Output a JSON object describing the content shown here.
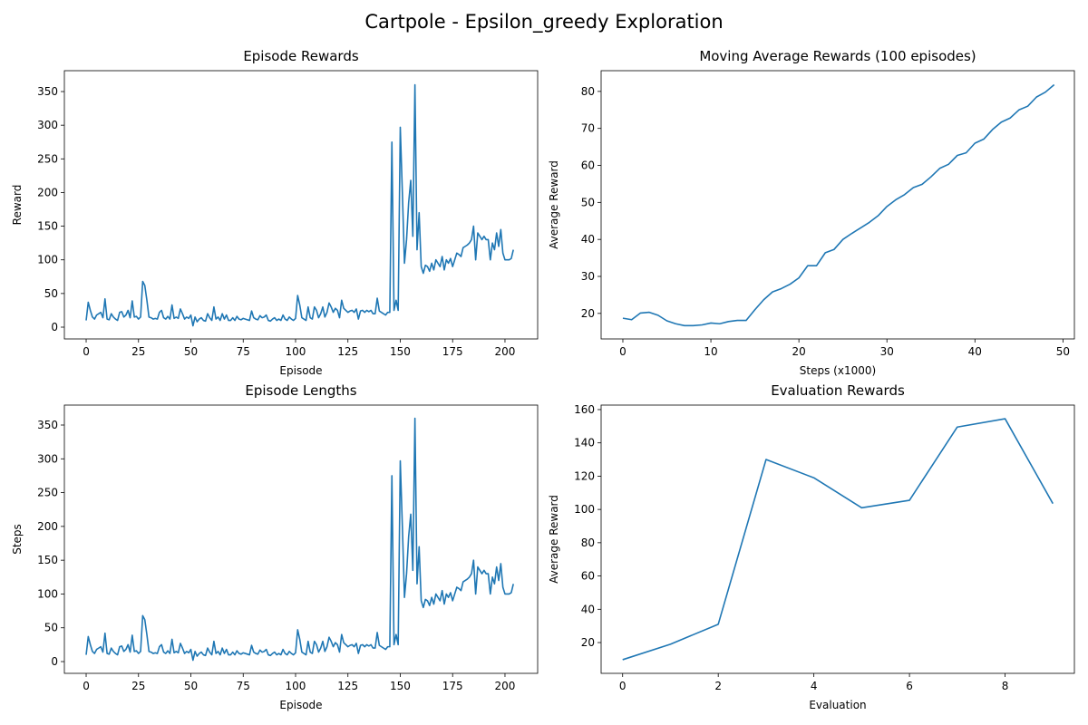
{
  "title": "Cartpole - Epsilon_greedy Exploration",
  "chart_data": [
    {
      "type": "line",
      "title": "Episode Rewards",
      "xlabel": "Episode",
      "ylabel": "Reward",
      "color": "#1f77b4",
      "values": [
        10,
        37,
        25,
        15,
        12,
        18,
        20,
        22,
        14,
        42,
        12,
        11,
        20,
        15,
        12,
        10,
        22,
        23,
        15,
        18,
        25,
        14,
        39,
        15,
        16,
        12,
        15,
        68,
        62,
        40,
        15,
        14,
        12,
        13,
        12,
        22,
        25,
        14,
        12,
        16,
        12,
        33,
        13,
        15,
        13,
        27,
        20,
        12,
        15,
        13,
        18,
        2,
        15,
        8,
        12,
        14,
        10,
        9,
        20,
        14,
        10,
        30,
        12,
        15,
        10,
        20,
        12,
        18,
        10,
        10,
        14,
        10,
        16,
        12,
        11,
        13,
        12,
        11,
        10,
        24,
        14,
        12,
        11,
        17,
        14,
        15,
        18,
        10,
        9,
        12,
        14,
        10,
        12,
        10,
        18,
        12,
        10,
        15,
        12,
        10,
        13,
        47,
        33,
        14,
        12,
        10,
        30,
        14,
        12,
        30,
        25,
        14,
        20,
        30,
        15,
        22,
        36,
        30,
        22,
        28,
        25,
        14,
        40,
        28,
        25,
        22,
        24,
        25,
        22,
        27,
        12,
        24,
        25,
        22,
        25,
        23,
        25,
        20,
        20,
        43,
        24,
        22,
        20,
        18,
        22,
        22,
        275,
        25,
        40,
        25,
        297,
        200,
        95,
        130,
        185,
        218,
        135,
        360,
        115,
        170,
        90,
        80,
        92,
        90,
        83,
        95,
        85,
        100,
        95,
        90,
        105,
        85,
        100,
        95,
        102,
        90,
        100,
        110,
        108,
        105,
        118,
        120,
        122,
        125,
        130,
        150,
        100,
        140,
        135,
        130,
        135,
        130,
        130,
        100,
        125,
        115,
        140,
        120,
        145,
        110,
        100,
        100,
        100,
        102,
        115
      ],
      "xlim": [
        -10.4,
        215.6
      ],
      "ylim": [
        -17.5,
        381
      ],
      "xticks": [
        0,
        25,
        50,
        75,
        100,
        125,
        150,
        175,
        200
      ],
      "yticks": [
        0,
        50,
        100,
        150,
        200,
        250,
        300,
        350
      ]
    },
    {
      "type": "line",
      "title": "Moving Average Rewards (100 episodes)",
      "xlabel": "Steps (x1000)",
      "ylabel": "Average Reward",
      "color": "#1f77b4",
      "values": [
        18.7,
        18.3,
        20.1,
        20.3,
        19.5,
        18,
        17.2,
        16.7,
        16.7,
        16.9,
        17.4,
        17.2,
        17.8,
        18.1,
        18.1,
        21,
        23.7,
        25.8,
        26.7,
        27.9,
        29.6,
        32.9,
        32.9,
        36.4,
        37.3,
        40,
        41.6,
        43.1,
        44.6,
        46.4,
        48.9,
        50.7,
        52.1,
        54,
        54.9,
        56.9,
        59.2,
        60.3,
        62.7,
        63.4,
        66,
        67.1,
        69.7,
        71.7,
        72.8,
        75,
        76,
        78.5,
        79.8,
        81.8
      ],
      "xlim": [
        -2.47,
        51.3
      ],
      "ylim": [
        13.1,
        85.6
      ],
      "xticks": [
        0,
        10,
        20,
        30,
        40,
        50
      ],
      "yticks": [
        20,
        30,
        40,
        50,
        60,
        70,
        80
      ]
    },
    {
      "type": "line",
      "title": "Episode Lengths",
      "xlabel": "Episode",
      "ylabel": "Steps",
      "color": "#1f77b4",
      "values": [
        10,
        37,
        25,
        15,
        12,
        18,
        20,
        22,
        14,
        42,
        12,
        11,
        20,
        15,
        12,
        10,
        22,
        23,
        15,
        18,
        25,
        14,
        39,
        15,
        16,
        12,
        15,
        68,
        62,
        40,
        15,
        14,
        12,
        13,
        12,
        22,
        25,
        14,
        12,
        16,
        12,
        33,
        13,
        15,
        13,
        27,
        20,
        12,
        15,
        13,
        18,
        2,
        15,
        8,
        12,
        14,
        10,
        9,
        20,
        14,
        10,
        30,
        12,
        15,
        10,
        20,
        12,
        18,
        10,
        10,
        14,
        10,
        16,
        12,
        11,
        13,
        12,
        11,
        10,
        24,
        14,
        12,
        11,
        17,
        14,
        15,
        18,
        10,
        9,
        12,
        14,
        10,
        12,
        10,
        18,
        12,
        10,
        15,
        12,
        10,
        13,
        47,
        33,
        14,
        12,
        10,
        30,
        14,
        12,
        30,
        25,
        14,
        20,
        30,
        15,
        22,
        36,
        30,
        22,
        28,
        25,
        14,
        40,
        28,
        25,
        22,
        24,
        25,
        22,
        27,
        12,
        24,
        25,
        22,
        25,
        23,
        25,
        20,
        20,
        43,
        24,
        22,
        20,
        18,
        22,
        22,
        275,
        25,
        40,
        25,
        297,
        200,
        95,
        130,
        185,
        218,
        135,
        360,
        115,
        170,
        90,
        80,
        92,
        90,
        83,
        95,
        85,
        100,
        95,
        90,
        105,
        85,
        100,
        95,
        102,
        90,
        100,
        110,
        108,
        105,
        118,
        120,
        122,
        125,
        130,
        150,
        100,
        140,
        135,
        130,
        135,
        130,
        130,
        100,
        125,
        115,
        140,
        120,
        145,
        110,
        100,
        100,
        100,
        102,
        115
      ],
      "xlim": [
        -10.4,
        215.6
      ],
      "ylim": [
        -17.4,
        379.5
      ],
      "xticks": [
        0,
        25,
        50,
        75,
        100,
        125,
        150,
        175,
        200
      ],
      "yticks": [
        0,
        50,
        100,
        150,
        200,
        250,
        300,
        350
      ]
    },
    {
      "type": "line",
      "title": "Evaluation Rewards",
      "xlabel": "Evaluation",
      "ylabel": "Average Reward",
      "color": "#1f77b4",
      "values": [
        9.7,
        19,
        31,
        130,
        119,
        101,
        105.5,
        149.5,
        154.5,
        103.5
      ],
      "xlim": [
        -0.45,
        9.45
      ],
      "ylim": [
        1.5,
        162.7
      ],
      "xticks": [
        0,
        2,
        4,
        6,
        8
      ],
      "yticks": [
        20,
        40,
        60,
        80,
        100,
        120,
        140,
        160
      ]
    }
  ]
}
